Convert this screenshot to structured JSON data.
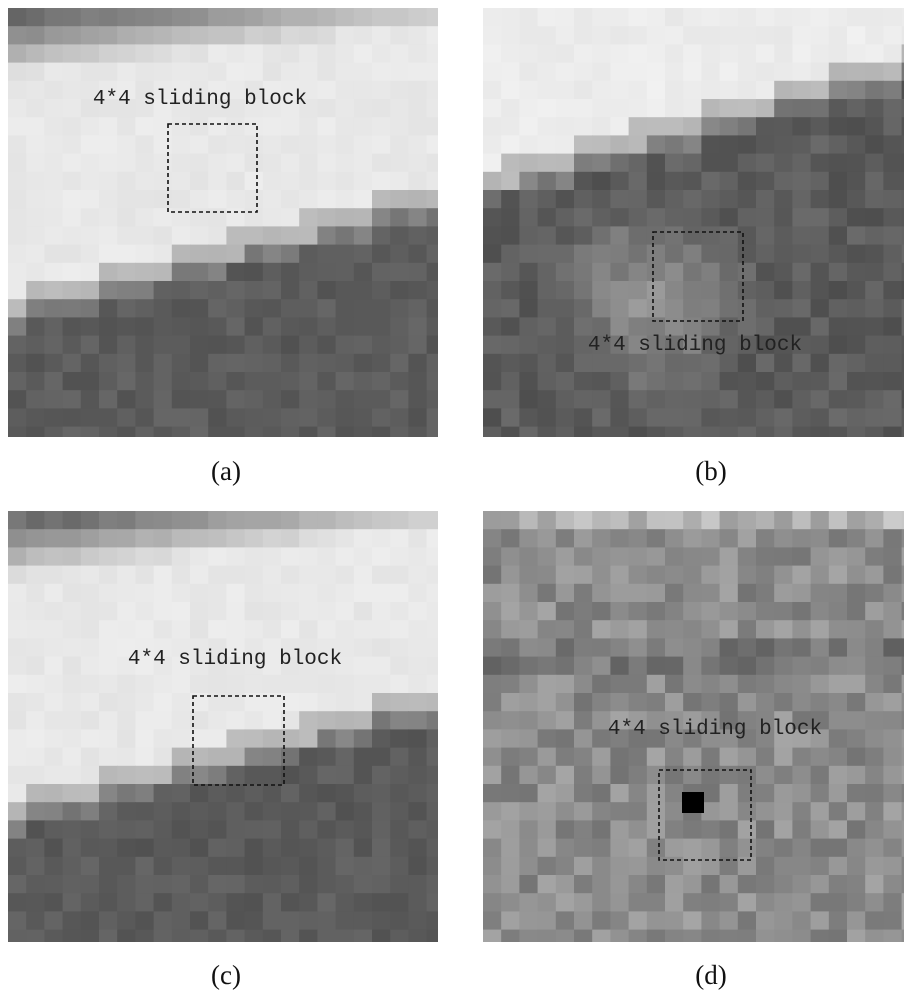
{
  "panels": [
    {
      "label": "(a)",
      "annotation": "4*4 sliding block"
    },
    {
      "label": "(b)",
      "annotation": "4*4 sliding block"
    },
    {
      "label": "(c)",
      "annotation": "4*4 sliding block"
    },
    {
      "label": "(d)",
      "annotation": "4*4 sliding block"
    }
  ]
}
